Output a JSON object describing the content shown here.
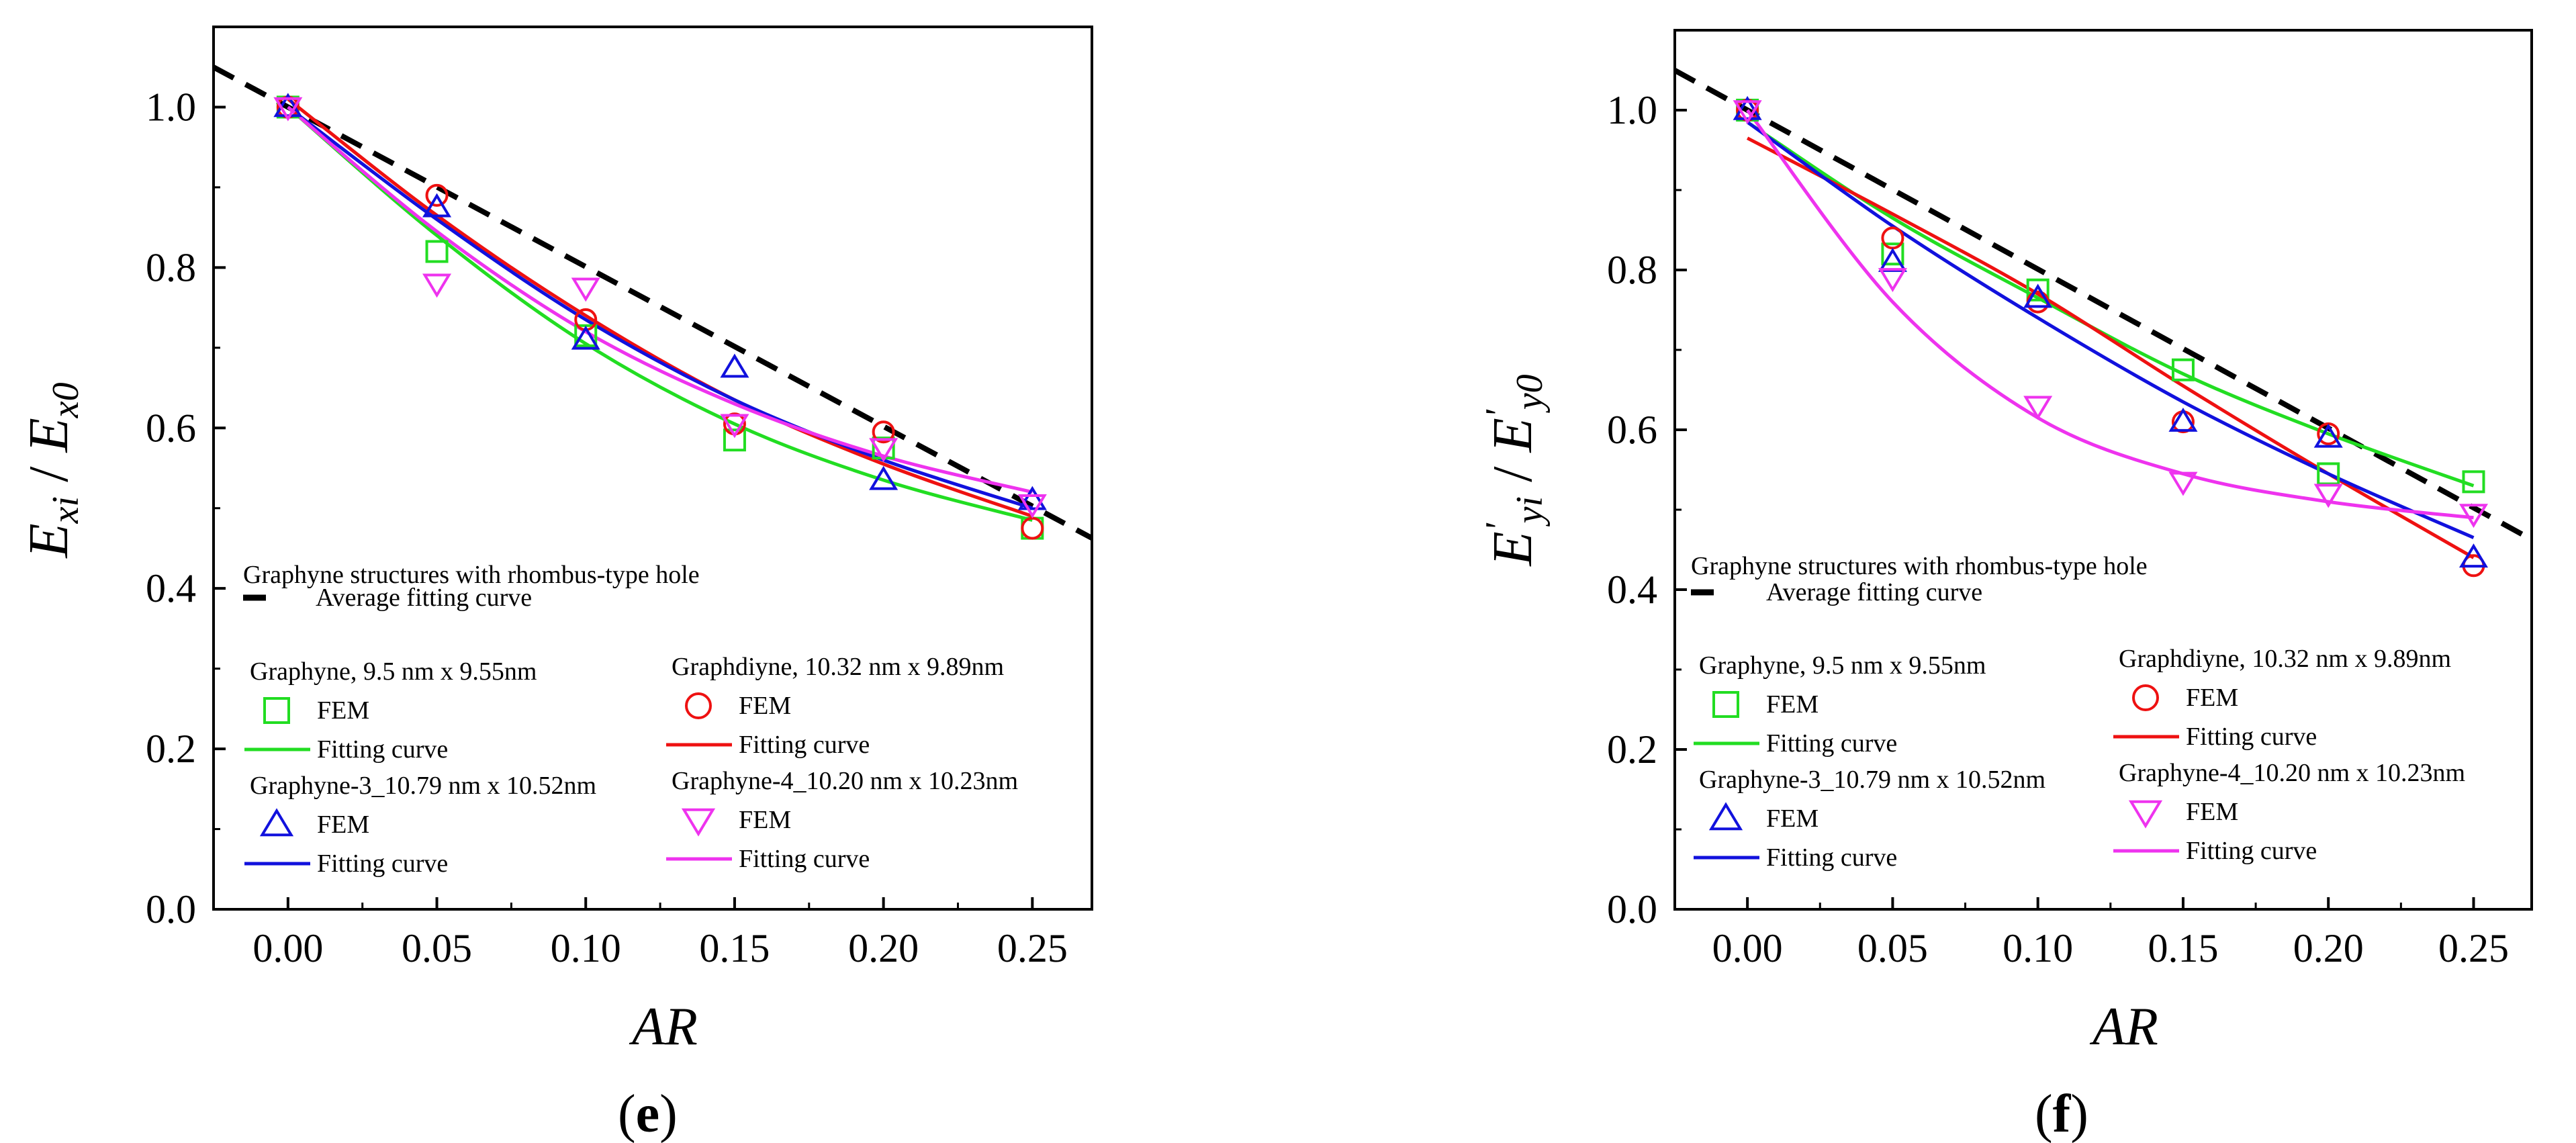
{
  "chart_data": [
    {
      "type": "scatter",
      "panel_label": "(e)",
      "panel_prefix": "(",
      "panel_letter": "e",
      "panel_suffix": ")",
      "xlabel": "AR",
      "ylabel": "E_xi / E_x0",
      "ylabel_parts": {
        "E1": "E",
        "s1": "xi",
        "slash": " / ",
        "E2": "E",
        "s2": "x0"
      },
      "xlim": [
        -0.025,
        0.27
      ],
      "ylim": [
        0.0,
        1.1
      ],
      "xticks": [
        "0.00",
        "0.05",
        "0.10",
        "0.15",
        "0.20",
        "0.25"
      ],
      "yticks": [
        "0.0",
        "0.2",
        "0.4",
        "0.6",
        "0.8",
        "1.0"
      ],
      "x": [
        0.0,
        0.05,
        0.1,
        0.15,
        0.2,
        0.25
      ],
      "legend": {
        "title": "Graphyne structures with rhombus-type hole",
        "average_label": "Average fitting curve",
        "fem_label": "FEM",
        "fit_label": "Fitting curve"
      },
      "average": {
        "name": "Average fitting curve",
        "intercept": 1.0,
        "slope": -1.99,
        "color": "#000000"
      },
      "series": [
        {
          "name": "Graphyne,  9.5 nm x 9.55nm",
          "marker": "square",
          "color": "#22dd22",
          "fem": [
            1.0,
            0.82,
            0.715,
            0.585,
            0.575,
            0.475
          ],
          "fit": [
            1.0,
            0.84,
            0.705,
            0.605,
            0.535,
            0.485
          ]
        },
        {
          "name": "Graphdiyne, 10.32 nm x 9.89nm",
          "marker": "circle",
          "color": "#ee1111",
          "fem": [
            1.0,
            0.89,
            0.735,
            0.605,
            0.595,
            0.475
          ],
          "fit": [
            1.01,
            0.865,
            0.74,
            0.635,
            0.555,
            0.49
          ]
        },
        {
          "name": "Graphyne-3_10.79 nm x 10.52nm",
          "marker": "triangle-up",
          "color": "#1111dd",
          "fem": [
            1.0,
            0.875,
            0.71,
            0.675,
            0.535,
            0.51
          ],
          "fit": [
            1.0,
            0.86,
            0.735,
            0.635,
            0.56,
            0.5
          ]
        },
        {
          "name": "Graphyne-4_10.20 nm x 10.23nm",
          "marker": "triangle-down",
          "color": "#ee33ee",
          "fem": [
            1.0,
            0.78,
            0.775,
            0.605,
            0.575,
            0.505
          ],
          "fit": [
            1.0,
            0.845,
            0.72,
            0.63,
            0.565,
            0.52
          ]
        }
      ]
    },
    {
      "type": "scatter",
      "panel_label": "(f)",
      "panel_prefix": "(",
      "panel_letter": "f",
      "panel_suffix": ")",
      "xlabel": "AR",
      "ylabel": "E'_yi / E'_y0",
      "ylabel_parts": {
        "E1": "E",
        "p1": "'",
        "s1": "yi",
        "slash": " / ",
        "E2": "E",
        "p2": "'",
        "s2": "y0"
      },
      "xlim": [
        -0.025,
        0.27
      ],
      "ylim": [
        0.0,
        1.1
      ],
      "xticks": [
        "0.00",
        "0.05",
        "0.10",
        "0.15",
        "0.20",
        "0.25"
      ],
      "yticks": [
        "0.0",
        "0.2",
        "0.4",
        "0.6",
        "0.8",
        "1.0"
      ],
      "x": [
        0.0,
        0.05,
        0.1,
        0.15,
        0.2,
        0.25
      ],
      "legend": {
        "title": "Graphyne structures with rhombus-type hole",
        "average_label": "Average fitting curve",
        "fem_label": "FEM",
        "fit_label": "Fitting curve"
      },
      "average": {
        "name": "Average fitting curve",
        "intercept": 1.0,
        "slope": -1.99,
        "color": "#000000"
      },
      "series": [
        {
          "name": "Graphyne,  9.5 nm x 9.55nm",
          "marker": "square",
          "color": "#22dd22",
          "fem": [
            1.0,
            0.82,
            0.775,
            0.675,
            0.545,
            0.535
          ],
          "fit": [
            0.985,
            0.865,
            0.765,
            0.67,
            0.595,
            0.53
          ]
        },
        {
          "name": "Graphdiyne, 10.32 nm x 9.89nm",
          "marker": "circle",
          "color": "#ee1111",
          "fem": [
            1.0,
            0.84,
            0.76,
            0.61,
            0.595,
            0.43
          ],
          "fit": [
            0.965,
            0.87,
            0.77,
            0.655,
            0.545,
            0.44
          ]
        },
        {
          "name": "Graphyne-3_10.79 nm x 10.52nm",
          "marker": "triangle-up",
          "color": "#1111dd",
          "fem": [
            1.0,
            0.81,
            0.765,
            0.61,
            0.59,
            0.44
          ],
          "fit": [
            0.985,
            0.855,
            0.74,
            0.635,
            0.545,
            0.465
          ]
        },
        {
          "name": "Graphyne-4_10.20 nm x 10.23nm",
          "marker": "triangle-down",
          "color": "#ee33ee",
          "fem": [
            1.0,
            0.79,
            0.63,
            0.535,
            0.52,
            0.495
          ],
          "fit": [
            1.0,
            0.76,
            0.615,
            0.545,
            0.51,
            0.49
          ]
        }
      ]
    }
  ]
}
